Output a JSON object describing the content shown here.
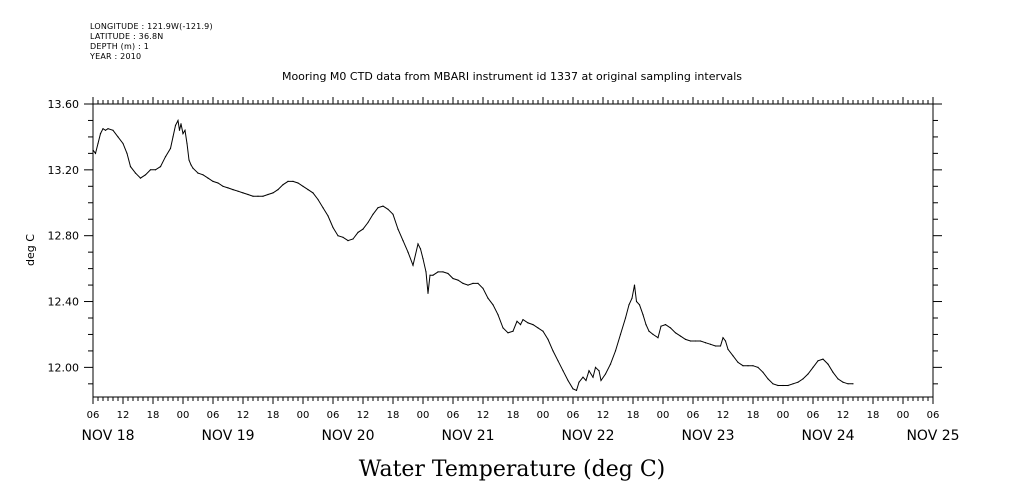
{
  "header": {
    "metadata": [
      "LONGITUDE : 121.9W(-121.9)",
      "LATITUDE : 36.8N",
      "DEPTH (m) : 1",
      "YEAR : 2010"
    ]
  },
  "chart_data": {
    "type": "line",
    "title": "Mooring M0 CTD data from MBARI instrument id 1337 at original sampling intervals",
    "ylabel": "deg C",
    "xlabel": "Water Temperature (deg C)",
    "ylim": [
      11.82,
      13.6
    ],
    "xlim_hours": [
      0,
      168
    ],
    "yticks": [
      {
        "value": 13.6,
        "label": "13.60"
      },
      {
        "value": 13.2,
        "label": "13.20"
      },
      {
        "value": 12.8,
        "label": "12.80"
      },
      {
        "value": 12.4,
        "label": "12.40"
      },
      {
        "value": 12.0,
        "label": "12.00"
      }
    ],
    "xticks": [
      {
        "h": 0,
        "label": "06"
      },
      {
        "h": 6,
        "label": "12"
      },
      {
        "h": 12,
        "label": "18"
      },
      {
        "h": 18,
        "label": "00"
      },
      {
        "h": 24,
        "label": "06"
      },
      {
        "h": 30,
        "label": "12"
      },
      {
        "h": 36,
        "label": "18"
      },
      {
        "h": 42,
        "label": "00"
      },
      {
        "h": 48,
        "label": "06"
      },
      {
        "h": 54,
        "label": "12"
      },
      {
        "h": 60,
        "label": "18"
      },
      {
        "h": 66,
        "label": "00"
      },
      {
        "h": 72,
        "label": "06"
      },
      {
        "h": 78,
        "label": "12"
      },
      {
        "h": 84,
        "label": "18"
      },
      {
        "h": 90,
        "label": "00"
      },
      {
        "h": 96,
        "label": "06"
      },
      {
        "h": 102,
        "label": "12"
      },
      {
        "h": 108,
        "label": "18"
      },
      {
        "h": 114,
        "label": "00"
      },
      {
        "h": 120,
        "label": "06"
      },
      {
        "h": 126,
        "label": "12"
      },
      {
        "h": 132,
        "label": "18"
      },
      {
        "h": 138,
        "label": "00"
      },
      {
        "h": 144,
        "label": "06"
      },
      {
        "h": 150,
        "label": "12"
      },
      {
        "h": 156,
        "label": "18"
      },
      {
        "h": 162,
        "label": "00"
      },
      {
        "h": 168,
        "label": "06"
      }
    ],
    "day_labels": [
      {
        "h": 3,
        "label": "NOV 18"
      },
      {
        "h": 27,
        "label": "NOV 19"
      },
      {
        "h": 51,
        "label": "NOV 20"
      },
      {
        "h": 75,
        "label": "NOV 21"
      },
      {
        "h": 99,
        "label": "NOV 22"
      },
      {
        "h": 123,
        "label": "NOV 23"
      },
      {
        "h": 147,
        "label": "NOV 24"
      },
      {
        "h": 168,
        "label": "NOV 25"
      }
    ],
    "series": [
      {
        "color": "#000000",
        "points": [
          [
            0,
            13.32
          ],
          [
            0.5,
            13.3
          ],
          [
            1,
            13.36
          ],
          [
            1.5,
            13.42
          ],
          [
            2,
            13.45
          ],
          [
            2.5,
            13.44
          ],
          [
            3,
            13.45
          ],
          [
            4,
            13.44
          ],
          [
            5,
            13.4
          ],
          [
            6,
            13.36
          ],
          [
            6.8,
            13.3
          ],
          [
            7.5,
            13.22
          ],
          [
            8.5,
            13.18
          ],
          [
            9.5,
            13.15
          ],
          [
            10.5,
            13.17
          ],
          [
            11.5,
            13.2
          ],
          [
            12.5,
            13.2
          ],
          [
            13.5,
            13.22
          ],
          [
            14.5,
            13.28
          ],
          [
            15.5,
            13.33
          ],
          [
            16,
            13.4
          ],
          [
            16.5,
            13.47
          ],
          [
            17,
            13.5
          ],
          [
            17.3,
            13.44
          ],
          [
            17.6,
            13.48
          ],
          [
            18,
            13.42
          ],
          [
            18.4,
            13.44
          ],
          [
            18.8,
            13.36
          ],
          [
            19.2,
            13.26
          ],
          [
            19.6,
            13.23
          ],
          [
            20,
            13.21
          ],
          [
            21,
            13.18
          ],
          [
            22,
            13.17
          ],
          [
            23,
            13.15
          ],
          [
            24,
            13.13
          ],
          [
            25,
            13.12
          ],
          [
            26,
            13.1
          ],
          [
            27,
            13.09
          ],
          [
            28,
            13.08
          ],
          [
            29,
            13.07
          ],
          [
            30,
            13.06
          ],
          [
            31,
            13.05
          ],
          [
            32,
            13.04
          ],
          [
            33,
            13.04
          ],
          [
            34,
            13.04
          ],
          [
            35,
            13.05
          ],
          [
            36,
            13.06
          ],
          [
            37,
            13.08
          ],
          [
            38,
            13.11
          ],
          [
            39,
            13.13
          ],
          [
            40,
            13.13
          ],
          [
            41,
            13.12
          ],
          [
            42,
            13.1
          ],
          [
            43,
            13.08
          ],
          [
            44,
            13.06
          ],
          [
            45,
            13.02
          ],
          [
            46,
            12.97
          ],
          [
            47,
            12.92
          ],
          [
            48,
            12.85
          ],
          [
            49,
            12.8
          ],
          [
            50,
            12.79
          ],
          [
            51,
            12.77
          ],
          [
            52,
            12.78
          ],
          [
            53,
            12.82
          ],
          [
            54,
            12.84
          ],
          [
            55,
            12.88
          ],
          [
            56,
            12.93
          ],
          [
            57,
            12.97
          ],
          [
            58,
            12.98
          ],
          [
            59,
            12.96
          ],
          [
            60,
            12.93
          ],
          [
            61,
            12.84
          ],
          [
            62,
            12.77
          ],
          [
            63,
            12.7
          ],
          [
            64,
            12.62
          ],
          [
            65,
            12.75
          ],
          [
            65.5,
            12.72
          ],
          [
            66,
            12.66
          ],
          [
            66.6,
            12.58
          ],
          [
            67,
            12.45
          ],
          [
            67.4,
            12.56
          ],
          [
            68,
            12.56
          ],
          [
            69,
            12.58
          ],
          [
            70,
            12.58
          ],
          [
            71,
            12.57
          ],
          [
            72,
            12.54
          ],
          [
            73,
            12.53
          ],
          [
            74,
            12.51
          ],
          [
            75,
            12.5
          ],
          [
            76,
            12.51
          ],
          [
            77,
            12.51
          ],
          [
            78,
            12.48
          ],
          [
            79,
            12.42
          ],
          [
            80,
            12.38
          ],
          [
            81,
            12.32
          ],
          [
            82,
            12.24
          ],
          [
            83,
            12.21
          ],
          [
            84,
            12.22
          ],
          [
            84.8,
            12.28
          ],
          [
            85.5,
            12.26
          ],
          [
            86,
            12.29
          ],
          [
            87,
            12.27
          ],
          [
            88,
            12.26
          ],
          [
            89,
            12.24
          ],
          [
            90,
            12.22
          ],
          [
            91,
            12.17
          ],
          [
            92,
            12.1
          ],
          [
            93,
            12.04
          ],
          [
            94,
            11.98
          ],
          [
            95,
            11.92
          ],
          [
            96,
            11.87
          ],
          [
            96.7,
            11.86
          ],
          [
            97.2,
            11.91
          ],
          [
            98,
            11.94
          ],
          [
            98.6,
            11.92
          ],
          [
            99.2,
            11.98
          ],
          [
            100,
            11.94
          ],
          [
            100.5,
            12.0
          ],
          [
            101.2,
            11.98
          ],
          [
            101.6,
            11.92
          ],
          [
            102.5,
            11.96
          ],
          [
            103.5,
            12.02
          ],
          [
            104.5,
            12.1
          ],
          [
            105.5,
            12.2
          ],
          [
            106.5,
            12.3
          ],
          [
            107.2,
            12.38
          ],
          [
            107.8,
            12.42
          ],
          [
            108.3,
            12.5
          ],
          [
            108.7,
            12.4
          ],
          [
            109.3,
            12.38
          ],
          [
            110,
            12.32
          ],
          [
            110.6,
            12.26
          ],
          [
            111.2,
            12.22
          ],
          [
            112,
            12.2
          ],
          [
            113,
            12.18
          ],
          [
            113.6,
            12.25
          ],
          [
            114.5,
            12.26
          ],
          [
            115.5,
            12.24
          ],
          [
            116.5,
            12.21
          ],
          [
            117.5,
            12.19
          ],
          [
            118.5,
            12.17
          ],
          [
            119.5,
            12.16
          ],
          [
            120.5,
            12.16
          ],
          [
            121.5,
            12.16
          ],
          [
            122.5,
            12.15
          ],
          [
            123.5,
            12.14
          ],
          [
            124.5,
            12.13
          ],
          [
            125.5,
            12.13
          ],
          [
            126,
            12.18
          ],
          [
            126.5,
            12.16
          ],
          [
            127,
            12.11
          ],
          [
            128,
            12.07
          ],
          [
            129,
            12.03
          ],
          [
            130,
            12.01
          ],
          [
            131,
            12.01
          ],
          [
            132,
            12.01
          ],
          [
            133,
            12.0
          ],
          [
            134,
            11.97
          ],
          [
            135,
            11.93
          ],
          [
            136,
            11.9
          ],
          [
            137,
            11.89
          ],
          [
            138,
            11.89
          ],
          [
            139,
            11.89
          ],
          [
            140,
            11.9
          ],
          [
            141,
            11.91
          ],
          [
            142,
            11.93
          ],
          [
            143,
            11.96
          ],
          [
            144,
            12.0
          ],
          [
            145,
            12.04
          ],
          [
            146,
            12.05
          ],
          [
            147,
            12.02
          ],
          [
            148,
            11.97
          ],
          [
            149,
            11.93
          ],
          [
            150,
            11.91
          ],
          [
            151,
            11.9
          ],
          [
            152,
            11.9
          ]
        ]
      }
    ]
  }
}
